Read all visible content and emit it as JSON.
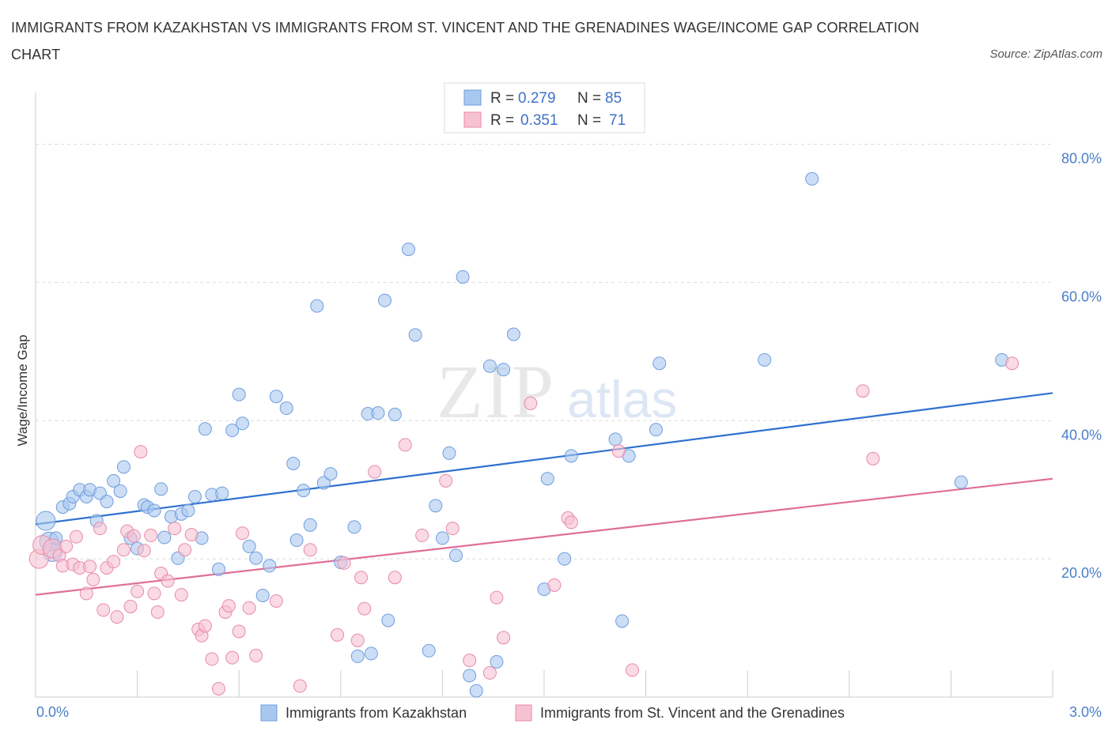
{
  "title": "IMMIGRANTS FROM KAZAKHSTAN VS IMMIGRANTS FROM ST. VINCENT AND THE GRENADINES WAGE/INCOME GAP CORRELATION CHART",
  "source": "Source: ZipAtlas.com",
  "watermark": {
    "zip": "ZIP",
    "atlas": "atlas"
  },
  "colors": {
    "blue_fill": "#a9c8f0",
    "blue_stroke": "#6f9ddc",
    "blue_line": "#2f70d0",
    "pink_fill": "#f6c2d2",
    "pink_stroke": "#e88aa8",
    "pink_line": "#e06f98",
    "tick_text": "#4a7fc9",
    "grid": "#dcdcdc"
  },
  "legend_top": [
    {
      "r_label": "R = ",
      "r_value": "0.279",
      "n_label": "N = ",
      "n_value": "85"
    },
    {
      "r_label": "R = ",
      "r_value": "0.351",
      "n_label": "N = ",
      "n_value": "71"
    }
  ],
  "chart_data": {
    "type": "scatter",
    "title": "IMMIGRANTS FROM KAZAKHSTAN VS IMMIGRANTS FROM ST. VINCENT AND THE GRENADINES WAGE/INCOME GAP CORRELATION CHART",
    "xlabel": "",
    "ylabel": "Wage/Income Gap",
    "xlim": [
      0,
      3.0
    ],
    "ylim": [
      0,
      80
    ],
    "x_tick_labels": [
      "0.0%",
      "3.0%"
    ],
    "y_ticks": [
      20,
      40,
      60,
      80
    ],
    "y_tick_labels": [
      "20.0%",
      "40.0%",
      "60.0%",
      "80.0%"
    ],
    "grid": true,
    "legend_placement": "top-center",
    "series": [
      {
        "name": "Immigrants from Kazakhstan",
        "color": "blue",
        "r": 0.279,
        "n": 85,
        "trend": [
          [
            0,
            25.0
          ],
          [
            3.0,
            44.0
          ]
        ],
        "points": [
          [
            0.03,
            25.5
          ],
          [
            0.04,
            22.5
          ],
          [
            0.05,
            21.0
          ],
          [
            0.06,
            23.0
          ],
          [
            0.08,
            27.5
          ],
          [
            0.1,
            28.0
          ],
          [
            0.11,
            29.0
          ],
          [
            0.13,
            30.0
          ],
          [
            0.15,
            29.0
          ],
          [
            0.16,
            30.0
          ],
          [
            0.18,
            25.5
          ],
          [
            0.19,
            29.5
          ],
          [
            0.21,
            28.3
          ],
          [
            0.23,
            31.3
          ],
          [
            0.25,
            29.8
          ],
          [
            0.26,
            33.3
          ],
          [
            0.28,
            23.0
          ],
          [
            0.3,
            21.5
          ],
          [
            0.32,
            27.8
          ],
          [
            0.33,
            27.5
          ],
          [
            0.35,
            27.0
          ],
          [
            0.37,
            30.1
          ],
          [
            0.38,
            23.1
          ],
          [
            0.4,
            26.1
          ],
          [
            0.42,
            20.1
          ],
          [
            0.43,
            26.5
          ],
          [
            0.45,
            27.0
          ],
          [
            0.47,
            29.0
          ],
          [
            0.49,
            23.0
          ],
          [
            0.5,
            38.8
          ],
          [
            0.52,
            29.3
          ],
          [
            0.54,
            18.5
          ],
          [
            0.55,
            29.5
          ],
          [
            0.58,
            38.6
          ],
          [
            0.6,
            43.8
          ],
          [
            0.61,
            39.6
          ],
          [
            0.63,
            21.8
          ],
          [
            0.65,
            20.1
          ],
          [
            0.67,
            14.7
          ],
          [
            0.69,
            19.0
          ],
          [
            0.71,
            43.5
          ],
          [
            0.74,
            41.8
          ],
          [
            0.76,
            33.8
          ],
          [
            0.77,
            22.7
          ],
          [
            0.79,
            29.9
          ],
          [
            0.81,
            24.9
          ],
          [
            0.83,
            56.6
          ],
          [
            0.85,
            31.0
          ],
          [
            0.87,
            32.3
          ],
          [
            0.9,
            19.5
          ],
          [
            0.94,
            24.6
          ],
          [
            0.95,
            5.9
          ],
          [
            0.98,
            41.0
          ],
          [
            0.99,
            6.3
          ],
          [
            1.01,
            41.1
          ],
          [
            1.03,
            57.4
          ],
          [
            1.04,
            11.1
          ],
          [
            1.06,
            40.9
          ],
          [
            1.1,
            64.8
          ],
          [
            1.12,
            52.4
          ],
          [
            1.16,
            6.7
          ],
          [
            1.18,
            27.7
          ],
          [
            1.2,
            23.0
          ],
          [
            1.22,
            35.3
          ],
          [
            1.24,
            20.5
          ],
          [
            1.26,
            60.8
          ],
          [
            1.28,
            3.1
          ],
          [
            1.3,
            0.9
          ],
          [
            1.34,
            47.9
          ],
          [
            1.36,
            5.1
          ],
          [
            1.38,
            47.4
          ],
          [
            1.41,
            52.5
          ],
          [
            1.5,
            15.6
          ],
          [
            1.51,
            31.6
          ],
          [
            1.56,
            20.0
          ],
          [
            1.58,
            34.9
          ],
          [
            1.71,
            37.3
          ],
          [
            1.73,
            11.0
          ],
          [
            1.75,
            34.9
          ],
          [
            1.83,
            38.7
          ],
          [
            1.84,
            48.3
          ],
          [
            2.15,
            48.8
          ],
          [
            2.29,
            75.0
          ],
          [
            2.73,
            31.1
          ],
          [
            2.85,
            48.8
          ]
        ]
      },
      {
        "name": "Immigrants from St. Vincent and the Grenadines",
        "color": "pink",
        "r": 0.351,
        "n": 71,
        "trend": [
          [
            0,
            14.8
          ],
          [
            3.0,
            31.6
          ]
        ],
        "points": [
          [
            0.01,
            20.0
          ],
          [
            0.02,
            22.0
          ],
          [
            0.05,
            21.5
          ],
          [
            0.07,
            20.5
          ],
          [
            0.08,
            19.0
          ],
          [
            0.09,
            21.8
          ],
          [
            0.11,
            19.2
          ],
          [
            0.12,
            23.2
          ],
          [
            0.13,
            18.7
          ],
          [
            0.15,
            15.0
          ],
          [
            0.16,
            18.9
          ],
          [
            0.17,
            17.0
          ],
          [
            0.19,
            24.4
          ],
          [
            0.2,
            12.6
          ],
          [
            0.21,
            18.7
          ],
          [
            0.23,
            19.6
          ],
          [
            0.24,
            11.6
          ],
          [
            0.26,
            21.3
          ],
          [
            0.27,
            24.0
          ],
          [
            0.28,
            13.1
          ],
          [
            0.29,
            23.3
          ],
          [
            0.3,
            15.3
          ],
          [
            0.31,
            35.5
          ],
          [
            0.32,
            21.2
          ],
          [
            0.34,
            23.4
          ],
          [
            0.35,
            15.0
          ],
          [
            0.36,
            12.3
          ],
          [
            0.37,
            17.9
          ],
          [
            0.39,
            16.8
          ],
          [
            0.41,
            24.4
          ],
          [
            0.43,
            14.8
          ],
          [
            0.44,
            21.3
          ],
          [
            0.46,
            23.5
          ],
          [
            0.48,
            9.8
          ],
          [
            0.49,
            8.9
          ],
          [
            0.5,
            10.3
          ],
          [
            0.52,
            5.5
          ],
          [
            0.54,
            1.2
          ],
          [
            0.56,
            12.3
          ],
          [
            0.57,
            13.2
          ],
          [
            0.58,
            5.7
          ],
          [
            0.6,
            9.5
          ],
          [
            0.61,
            23.7
          ],
          [
            0.63,
            12.9
          ],
          [
            0.65,
            6.0
          ],
          [
            0.71,
            13.9
          ],
          [
            0.78,
            1.6
          ],
          [
            0.81,
            21.3
          ],
          [
            0.89,
            9.0
          ],
          [
            0.91,
            19.4
          ],
          [
            0.95,
            8.2
          ],
          [
            0.96,
            17.3
          ],
          [
            0.97,
            12.8
          ],
          [
            1.0,
            32.6
          ],
          [
            1.06,
            17.3
          ],
          [
            1.09,
            36.5
          ],
          [
            1.14,
            23.4
          ],
          [
            1.21,
            31.3
          ],
          [
            1.23,
            24.4
          ],
          [
            1.28,
            5.3
          ],
          [
            1.34,
            3.5
          ],
          [
            1.36,
            14.4
          ],
          [
            1.38,
            8.6
          ],
          [
            1.46,
            42.5
          ],
          [
            1.53,
            16.2
          ],
          [
            1.57,
            25.9
          ],
          [
            1.58,
            25.3
          ],
          [
            1.72,
            35.6
          ],
          [
            1.76,
            3.9
          ],
          [
            2.44,
            44.3
          ],
          [
            2.47,
            34.5
          ],
          [
            2.88,
            48.3
          ]
        ]
      }
    ]
  },
  "legend_bottom": [
    {
      "label": "Immigrants from Kazakhstan"
    },
    {
      "label": "Immigrants from St. Vincent and the Grenadines"
    }
  ]
}
